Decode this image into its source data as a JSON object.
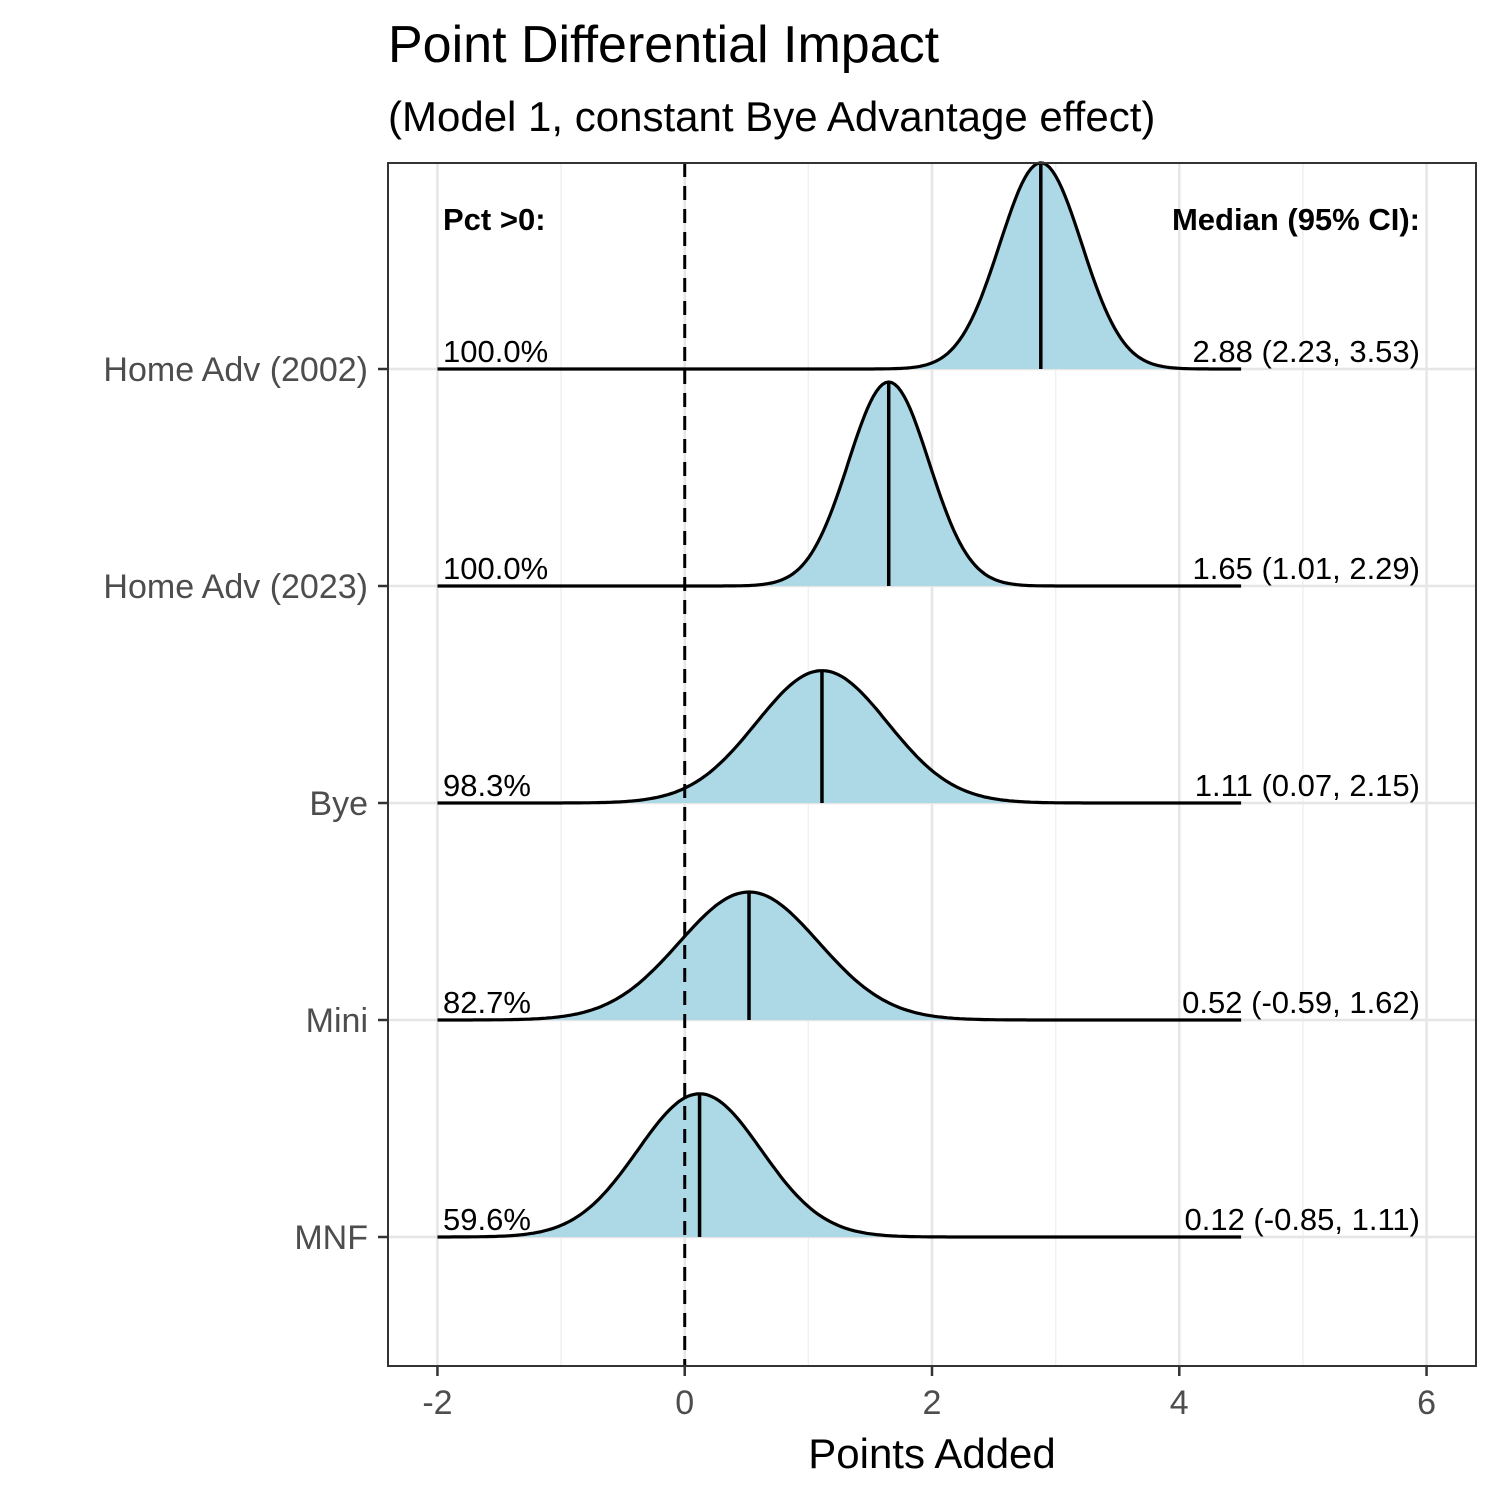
{
  "chart_data": {
    "type": "ridgeline",
    "title": "Point Differential Impact",
    "subtitle": "(Model 1, constant Bye Advantage effect)",
    "xlabel": "Points Added",
    "xlim": [
      -2.4,
      6.4
    ],
    "xticks": [
      -2,
      0,
      2,
      4,
      6
    ],
    "xtick_labels": [
      "-2",
      "0",
      "2",
      "4",
      "6"
    ],
    "reference_line_x": 0,
    "fill_color": "#add8e6",
    "line_color": "#000000",
    "density_range": [
      -2,
      4.5
    ],
    "left_header": "Pct >0:",
    "right_header": "Median (95% CI):",
    "series": [
      {
        "name": "Home Adv (2002)",
        "median": 2.88,
        "ci_low": 2.23,
        "ci_high": 3.53,
        "pct_label": "100.0%",
        "ci_label": "2.88 (2.23, 3.53)",
        "rel_height": 0.95
      },
      {
        "name": "Home Adv (2023)",
        "median": 1.65,
        "ci_low": 1.01,
        "ci_high": 2.29,
        "pct_label": "100.0%",
        "ci_label": "1.65 (1.01, 2.29)",
        "rel_height": 0.94
      },
      {
        "name": "Bye",
        "median": 1.11,
        "ci_low": 0.07,
        "ci_high": 2.15,
        "pct_label": "98.3%",
        "ci_label": "1.11 (0.07, 2.15)",
        "rel_height": 0.61
      },
      {
        "name": "Mini",
        "median": 0.52,
        "ci_low": -0.59,
        "ci_high": 1.62,
        "pct_label": "82.7%",
        "ci_label": "0.52 (-0.59, 1.62)",
        "rel_height": 0.59
      },
      {
        "name": "MNF",
        "median": 0.12,
        "ci_low": -0.85,
        "ci_high": 1.11,
        "pct_label": "59.6%",
        "ci_label": "0.12 (-0.85, 1.11)",
        "rel_height": 0.66
      }
    ]
  }
}
